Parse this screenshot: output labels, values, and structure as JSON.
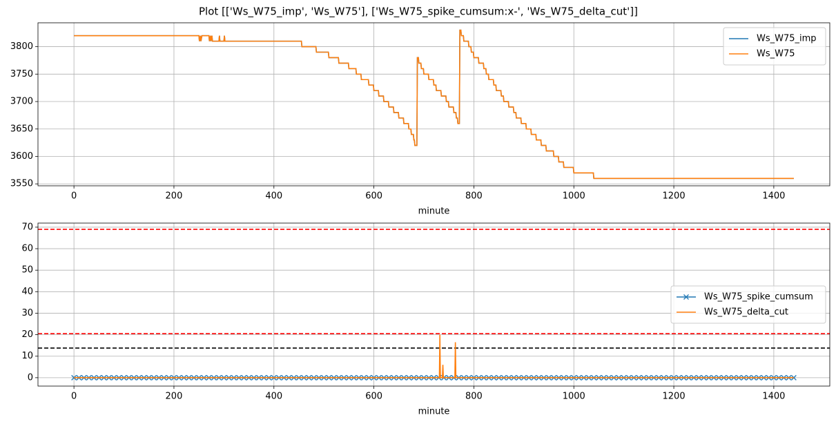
{
  "title": "Plot [['Ws_W75_imp', 'Ws_W75'], ['Ws_W75_spike_cumsum:x-', 'Ws_W75_delta_cut']]",
  "chart_data": [
    {
      "type": "line",
      "xlabel": "minute",
      "grid": true,
      "legend": "upper right",
      "xlim": [
        -72,
        1512
      ],
      "xticks": [
        0,
        200,
        400,
        600,
        800,
        1000,
        1200,
        1400
      ],
      "ylim": [
        3546.5,
        3843.5
      ],
      "yticks": [
        3550,
        3600,
        3650,
        3700,
        3750,
        3800
      ],
      "x": [
        0,
        250,
        251,
        253,
        254,
        256,
        257,
        270,
        271,
        273,
        274,
        276,
        277,
        280,
        290,
        291,
        292,
        300,
        301,
        302,
        455,
        456,
        484,
        485,
        509,
        510,
        529,
        530,
        549,
        550,
        564,
        565,
        574,
        575,
        589,
        590,
        599,
        600,
        609,
        610,
        619,
        620,
        629,
        630,
        639,
        640,
        649,
        650,
        659,
        660,
        669,
        670,
        674,
        675,
        679,
        680,
        681,
        682,
        686,
        687,
        689,
        690,
        694,
        695,
        699,
        700,
        709,
        710,
        719,
        720,
        724,
        725,
        734,
        735,
        744,
        745,
        749,
        750,
        759,
        760,
        764,
        765,
        767,
        768,
        771,
        772,
        774,
        775,
        779,
        780,
        789,
        790,
        794,
        795,
        799,
        800,
        809,
        810,
        819,
        820,
        824,
        825,
        829,
        830,
        839,
        840,
        844,
        845,
        854,
        855,
        859,
        860,
        869,
        870,
        879,
        880,
        884,
        885,
        894,
        895,
        904,
        905,
        914,
        915,
        924,
        925,
        934,
        935,
        944,
        945,
        959,
        960,
        969,
        970,
        979,
        980,
        999,
        1000,
        1039,
        1040,
        1440
      ],
      "series": [
        {
          "name": "Ws_W75_imp",
          "color": "#1f77b4",
          "values": [
            3820,
            3820,
            3810,
            3820,
            3810,
            3820,
            3820,
            3820,
            3810,
            3820,
            3810,
            3820,
            3810,
            3810,
            3810,
            3820,
            3810,
            3810,
            3820,
            3810,
            3810,
            3800,
            3800,
            3790,
            3790,
            3780,
            3780,
            3770,
            3770,
            3760,
            3760,
            3750,
            3750,
            3740,
            3740,
            3730,
            3730,
            3720,
            3720,
            3710,
            3710,
            3700,
            3700,
            3690,
            3690,
            3680,
            3680,
            3670,
            3670,
            3660,
            3660,
            3650,
            3650,
            3640,
            3640,
            3630,
            3630,
            3620,
            3620,
            3780,
            3780,
            3770,
            3770,
            3760,
            3760,
            3750,
            3750,
            3740,
            3740,
            3730,
            3730,
            3720,
            3720,
            3710,
            3710,
            3700,
            3700,
            3690,
            3690,
            3680,
            3680,
            3670,
            3670,
            3660,
            3660,
            3830,
            3830,
            3820,
            3820,
            3810,
            3810,
            3800,
            3800,
            3790,
            3790,
            3780,
            3780,
            3770,
            3770,
            3760,
            3760,
            3750,
            3750,
            3740,
            3740,
            3730,
            3730,
            3720,
            3720,
            3710,
            3710,
            3700,
            3700,
            3690,
            3690,
            3680,
            3680,
            3670,
            3670,
            3660,
            3660,
            3650,
            3650,
            3640,
            3640,
            3630,
            3630,
            3620,
            3620,
            3610,
            3610,
            3600,
            3600,
            3590,
            3590,
            3580,
            3580,
            3570,
            3570,
            3560,
            3560
          ]
        },
        {
          "name": "Ws_W75",
          "color": "#ff7f0e",
          "values": [
            3820,
            3820,
            3810,
            3820,
            3810,
            3820,
            3820,
            3820,
            3810,
            3820,
            3810,
            3820,
            3810,
            3810,
            3810,
            3820,
            3810,
            3810,
            3820,
            3810,
            3810,
            3800,
            3800,
            3790,
            3790,
            3780,
            3780,
            3770,
            3770,
            3760,
            3760,
            3750,
            3750,
            3740,
            3740,
            3730,
            3730,
            3720,
            3720,
            3710,
            3710,
            3700,
            3700,
            3690,
            3690,
            3680,
            3680,
            3670,
            3670,
            3660,
            3660,
            3650,
            3650,
            3640,
            3640,
            3630,
            3630,
            3620,
            3620,
            3780,
            3780,
            3770,
            3770,
            3760,
            3760,
            3750,
            3750,
            3740,
            3740,
            3730,
            3730,
            3720,
            3720,
            3710,
            3710,
            3700,
            3700,
            3690,
            3690,
            3680,
            3680,
            3670,
            3670,
            3660,
            3660,
            3830,
            3830,
            3820,
            3820,
            3810,
            3810,
            3800,
            3800,
            3790,
            3790,
            3780,
            3780,
            3770,
            3770,
            3760,
            3760,
            3750,
            3750,
            3740,
            3740,
            3730,
            3730,
            3720,
            3720,
            3710,
            3710,
            3700,
            3700,
            3690,
            3690,
            3680,
            3680,
            3670,
            3670,
            3660,
            3660,
            3650,
            3650,
            3640,
            3640,
            3630,
            3630,
            3620,
            3620,
            3610,
            3610,
            3600,
            3600,
            3590,
            3590,
            3580,
            3580,
            3570,
            3570,
            3560,
            3560
          ]
        }
      ]
    },
    {
      "type": "line",
      "xlabel": "minute",
      "grid": true,
      "legend": "center right",
      "xlim": [
        -72,
        1512
      ],
      "xticks": [
        0,
        200,
        400,
        600,
        800,
        1000,
        1200,
        1400
      ],
      "ylim": [
        -3.9,
        71.9
      ],
      "yticks": [
        0,
        10,
        20,
        30,
        40,
        50,
        60,
        70
      ],
      "hlines": [
        {
          "value": 69,
          "color": "#ff0000"
        },
        {
          "value": 20.5,
          "color": "#ff0000"
        },
        {
          "value": 13.8,
          "color": "#000000"
        }
      ],
      "series": [
        {
          "name": "Ws_W75_spike_cumsum",
          "color": "#1f77b4",
          "marker": "x",
          "x": [
            0,
            10,
            20,
            30,
            40,
            50,
            60,
            70,
            80,
            90,
            100,
            110,
            120,
            130,
            140,
            150,
            160,
            170,
            180,
            190,
            200,
            210,
            220,
            230,
            240,
            250,
            260,
            270,
            280,
            290,
            300,
            310,
            320,
            330,
            340,
            350,
            360,
            370,
            380,
            390,
            400,
            410,
            420,
            430,
            440,
            450,
            460,
            470,
            480,
            490,
            500,
            510,
            520,
            530,
            540,
            550,
            560,
            570,
            580,
            590,
            600,
            610,
            620,
            630,
            640,
            650,
            660,
            670,
            680,
            690,
            700,
            710,
            720,
            730,
            740,
            750,
            760,
            770,
            780,
            790,
            800,
            810,
            820,
            830,
            840,
            850,
            860,
            870,
            880,
            890,
            900,
            910,
            920,
            930,
            940,
            950,
            960,
            970,
            980,
            990,
            1000,
            1010,
            1020,
            1030,
            1040,
            1050,
            1060,
            1070,
            1080,
            1090,
            1100,
            1110,
            1120,
            1130,
            1140,
            1150,
            1160,
            1170,
            1180,
            1190,
            1200,
            1210,
            1220,
            1230,
            1240,
            1250,
            1260,
            1270,
            1280,
            1290,
            1300,
            1310,
            1320,
            1330,
            1340,
            1350,
            1360,
            1370,
            1380,
            1390,
            1400,
            1410,
            1420,
            1430,
            1440
          ],
          "values": [
            0,
            0,
            0,
            0,
            0,
            0,
            0,
            0,
            0,
            0,
            0,
            0,
            0,
            0,
            0,
            0,
            0,
            0,
            0,
            0,
            0,
            0,
            0,
            0,
            0,
            0,
            0,
            0,
            0,
            0,
            0,
            0,
            0,
            0,
            0,
            0,
            0,
            0,
            0,
            0,
            0,
            0,
            0,
            0,
            0,
            0,
            0,
            0,
            0,
            0,
            0,
            0,
            0,
            0,
            0,
            0,
            0,
            0,
            0,
            0,
            0,
            0,
            0,
            0,
            0,
            0,
            0,
            0,
            0,
            0,
            0,
            0,
            0,
            0,
            0,
            0,
            0,
            0,
            0,
            0,
            0,
            0,
            0,
            0,
            0,
            0,
            0,
            0,
            0,
            0,
            0,
            0,
            0,
            0,
            0,
            0,
            0,
            0,
            0,
            0,
            0,
            0,
            0,
            0,
            0,
            0,
            0,
            0,
            0,
            0,
            0,
            0,
            0,
            0,
            0,
            0,
            0,
            0,
            0,
            0,
            0,
            0,
            0,
            0,
            0,
            0,
            0,
            0,
            0,
            0,
            0,
            0,
            0,
            0,
            0,
            0,
            0,
            0,
            0,
            0,
            0,
            0,
            0,
            0,
            0
          ]
        },
        {
          "name": "Ws_W75_delta_cut",
          "color": "#ff7f0e",
          "x": [
            0,
            731,
            732,
            733,
            737,
            738,
            739,
            762,
            763,
            764,
            1440
          ],
          "values": [
            0,
            0,
            20,
            0,
            0,
            6,
            0,
            0,
            16.5,
            0,
            0
          ]
        }
      ]
    }
  ]
}
